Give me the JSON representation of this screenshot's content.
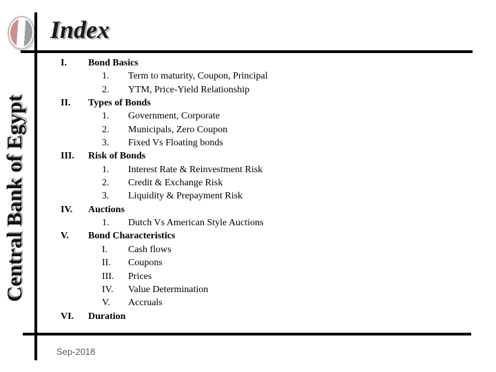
{
  "slide": {
    "title": "Index",
    "sidebar_text": "Central Bank of Egypt",
    "footer_date": "Sep-2018",
    "logo_icon": "central-bank-of-egypt-emblem",
    "colors": {
      "text": "#000000",
      "shadow": "#a9a9a9",
      "rule": "#000000",
      "footer_text": "#595959",
      "emblem_red": "#cf8e8e",
      "emblem_gray": "#9d9d9d"
    }
  },
  "index": {
    "sections": [
      {
        "numeral": "I.",
        "title": "Bond Basics",
        "items": [
          {
            "num": "1.",
            "text": "Term to maturity, Coupon, Principal"
          },
          {
            "num": "2.",
            "text": "YTM, Price-Yield Relationship"
          }
        ]
      },
      {
        "numeral": "II.",
        "title": "Types of Bonds",
        "items": [
          {
            "num": "1.",
            "text": "Government, Corporate"
          },
          {
            "num": "2.",
            "text": "Municipals, Zero Coupon"
          },
          {
            "num": "3.",
            "text": "Fixed Vs Floating bonds"
          }
        ]
      },
      {
        "numeral": "III.",
        "title": "Risk of Bonds",
        "items": [
          {
            "num": "1.",
            "text": "Interest Rate & Reinvestment Risk"
          },
          {
            "num": "2.",
            "text": "Credit & Exchange Risk"
          },
          {
            "num": "3.",
            "text": "Liquidity & Prepayment Risk"
          }
        ]
      },
      {
        "numeral": "IV.",
        "title": "Auctions",
        "items": [
          {
            "num": "1.",
            "text": "Dutch Vs American Style Auctions"
          }
        ]
      },
      {
        "numeral": "V.",
        "title": "Bond Characteristics",
        "items": [
          {
            "num": "I.",
            "text": "Cash flows"
          },
          {
            "num": "II.",
            "text": "Coupons"
          },
          {
            "num": "III.",
            "text": "Prices"
          },
          {
            "num": "IV.",
            "text": "Value Determination"
          },
          {
            "num": "V.",
            "text": "Accruals"
          }
        ]
      },
      {
        "numeral": "VI.",
        "title": "Duration",
        "items": []
      }
    ]
  }
}
